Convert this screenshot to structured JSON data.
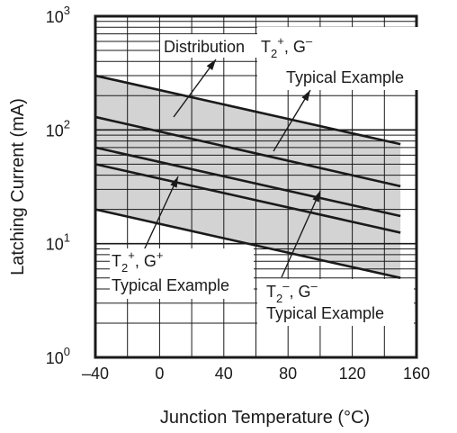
{
  "chart_data": {
    "type": "line",
    "title": "",
    "xlabel": "Junction Temperature  (°C)",
    "ylabel": "Latching Current  (mA)",
    "xlim": [
      -40,
      160
    ],
    "ylim": [
      1,
      1000
    ],
    "yscale": "log",
    "grid": true,
    "x_ticks": [
      "–40",
      "0",
      "40",
      "80",
      "120",
      "160"
    ],
    "y_ticks": [
      {
        "base": "10",
        "exp": "0"
      },
      {
        "base": "10",
        "exp": "1"
      },
      {
        "base": "10",
        "exp": "2"
      },
      {
        "base": "10",
        "exp": "3"
      }
    ],
    "band": {
      "label": "Distribution",
      "fill": "#d3d3d3",
      "upper": {
        "x": [
          -40,
          150
        ],
        "y": [
          300,
          75
        ]
      },
      "lower": {
        "x": [
          -40,
          150
        ],
        "y": [
          20,
          5
        ]
      }
    },
    "series": [
      {
        "x": [
          -40,
          150
        ],
        "y": [
          130,
          32
        ]
      },
      {
        "x": [
          -40,
          150
        ],
        "y": [
          70,
          17.5
        ]
      },
      {
        "x": [
          -40,
          150
        ],
        "y": [
          50,
          12.5
        ]
      }
    ],
    "annotations": {
      "distribution": "Distribution",
      "t2p_gm": {
        "l1a": "T",
        "l1b": "2",
        "l1c": "+",
        "l1d": ", G",
        "l1e": "–",
        "l2": "Typical Example"
      },
      "t2p_gp": {
        "l1a": "T",
        "l1b": "2",
        "l1c": "+",
        "l1d": ", G",
        "l1e": "+",
        "l2": "Typical Example"
      },
      "t2m_gm": {
        "l1a": "T",
        "l1b": "2",
        "l1c": "–",
        "l1d": ", G",
        "l1e": "–",
        "l2": "Typical Example"
      }
    },
    "colors": {
      "line": "#1a1a1a",
      "band": "#d3d3d3",
      "grid": "#1a1a1a",
      "background": "#ffffff"
    }
  }
}
